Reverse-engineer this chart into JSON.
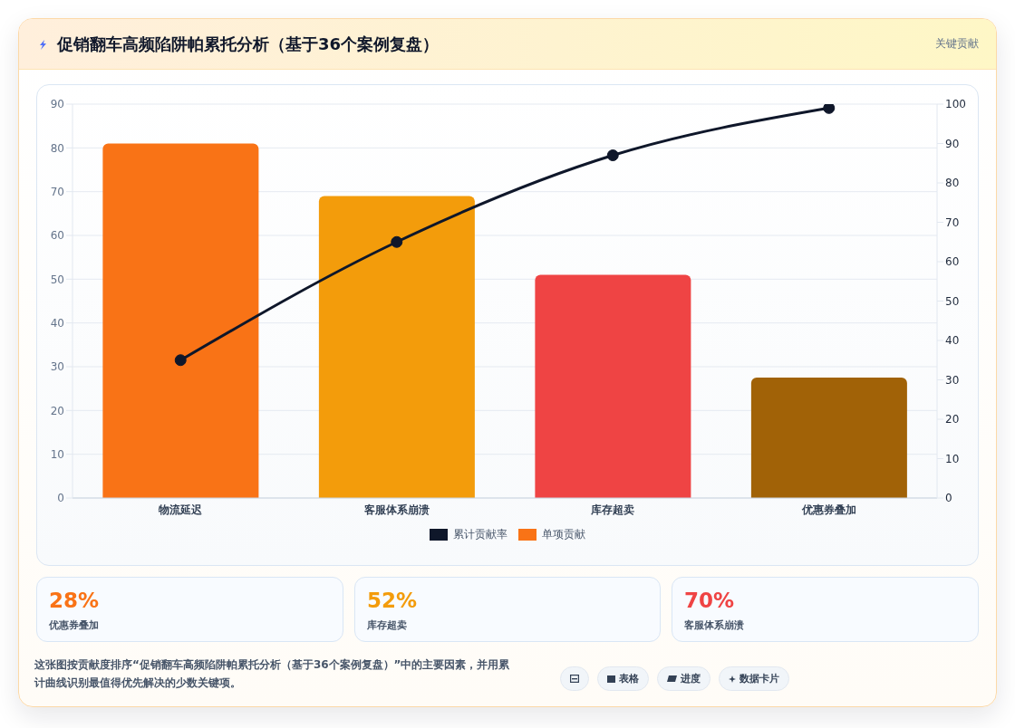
{
  "chart_data": {
    "type": "bar",
    "title": "促销翻车高频陷阱帕累托分析（基于36个案例复盘）",
    "categories": [
      "物流延迟",
      "客服体系崩溃",
      "库存超卖",
      "优惠券叠加"
    ],
    "series": [
      {
        "name": "累计贡献率",
        "type": "line",
        "axis": "y2",
        "color": "#0f172a",
        "values": [
          35,
          65,
          87,
          99
        ]
      },
      {
        "name": "单项贡献",
        "color": "#f97316",
        "colors": [
          "#f97316",
          "#f39c0b",
          "#ef4444",
          "#a16207"
        ],
        "values": [
          81,
          69,
          51,
          27.5
        ]
      }
    ],
    "ylim": [
      0,
      90
    ],
    "yticks": [
      0,
      10,
      20,
      30,
      40,
      50,
      60,
      70,
      80,
      90
    ],
    "y2lim": [
      0,
      100
    ],
    "y2ticks": [
      0,
      10,
      20,
      30,
      40,
      50,
      60,
      70,
      80,
      90,
      100
    ],
    "grid": "y",
    "legend": "bottom",
    "marker": "circle",
    "annotations": [
      "关键贡献",
      "28%",
      "优惠券叠加",
      "52%",
      "库存超卖",
      "70%",
      "客服体系崩溃",
      "这张图按贡献度排序“促销翻车高频陷阱帕累托分析（基于36个案例复盘）”中的主要因素，并用累计曲线识别最值得优先解决的少数关键项。",
      "表格",
      "进度",
      "数据卡片"
    ]
  }
}
